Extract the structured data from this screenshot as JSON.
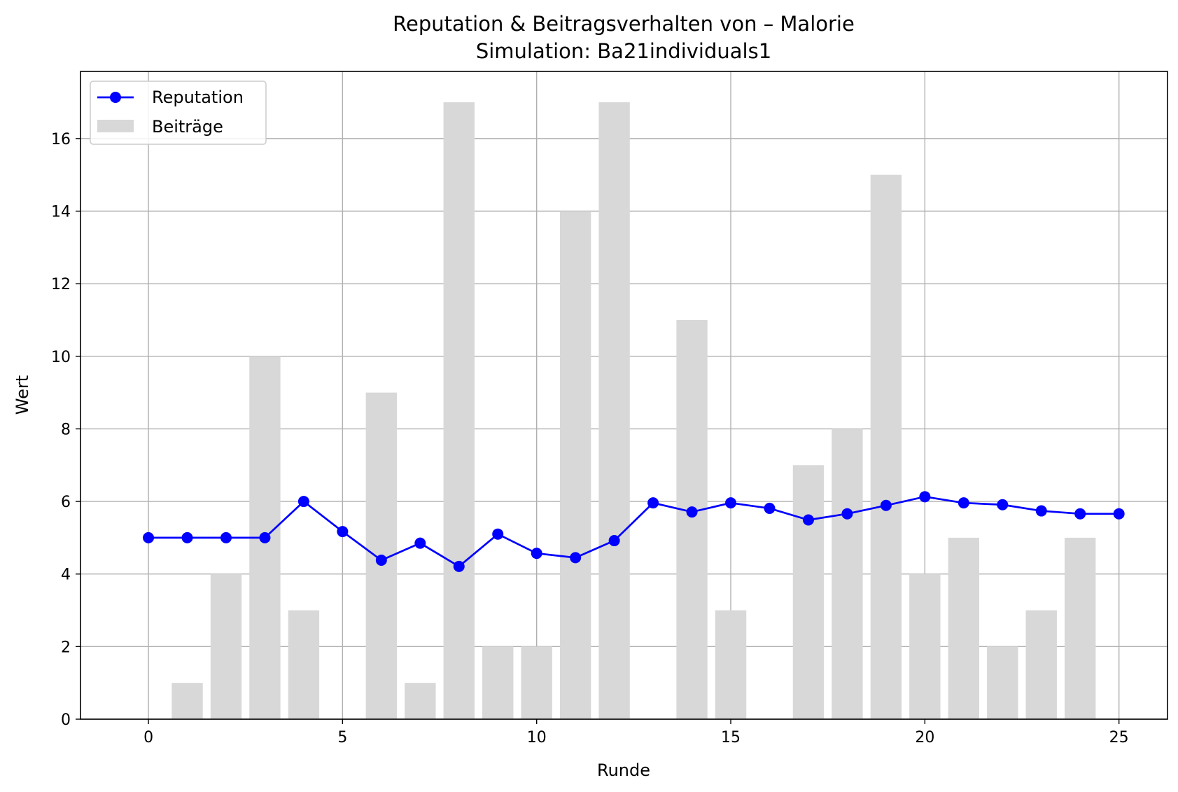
{
  "chart_data": {
    "type": "bar+line",
    "title": "Reputation & Beitragsverhalten von – Malorie",
    "subtitle": "Simulation: Ba21individuals1",
    "xlabel": "Runde",
    "ylabel": "Wert",
    "xlim": [
      -1.75,
      26.25
    ],
    "ylim": [
      0,
      17.85
    ],
    "xticks": [
      0,
      5,
      10,
      15,
      20,
      25
    ],
    "yticks": [
      0,
      2,
      4,
      6,
      8,
      10,
      12,
      14,
      16
    ],
    "grid": true,
    "legend_position": "top-left",
    "x": [
      0,
      1,
      2,
      3,
      4,
      5,
      6,
      7,
      8,
      9,
      10,
      11,
      12,
      13,
      14,
      15,
      16,
      17,
      18,
      19,
      20,
      21,
      22,
      23,
      24,
      25
    ],
    "series": [
      {
        "name": "Reputation",
        "type": "line",
        "color": "#0000ff",
        "marker": "circle",
        "values": [
          5.0,
          5.0,
          5.0,
          5.0,
          6.0,
          5.17,
          4.38,
          4.85,
          4.21,
          5.1,
          4.57,
          4.45,
          4.92,
          5.96,
          5.71,
          5.96,
          5.81,
          5.49,
          5.66,
          5.89,
          6.13,
          5.96,
          5.91,
          5.74,
          5.66,
          5.66
        ]
      },
      {
        "name": "Beiträge",
        "type": "bar",
        "color": "#d8d8d8",
        "values": [
          0,
          1,
          4,
          10,
          3,
          0,
          9,
          1,
          17,
          2,
          2,
          14,
          17,
          0,
          11,
          3,
          0,
          7,
          8,
          15,
          4,
          5,
          2,
          3,
          5,
          0
        ]
      }
    ]
  }
}
